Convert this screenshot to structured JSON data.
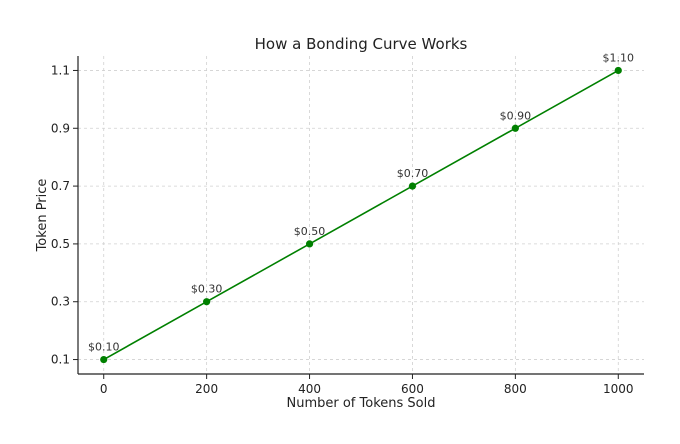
{
  "chart_data": {
    "type": "line",
    "title": "How a Bonding Curve Works",
    "xlabel": "Number of Tokens Sold",
    "ylabel": "Token Price",
    "xlim": [
      -50,
      1050
    ],
    "ylim": [
      0.05,
      1.15
    ],
    "x_ticks": [
      0,
      200,
      400,
      600,
      800,
      1000
    ],
    "y_ticks": [
      0.1,
      0.3,
      0.5,
      0.7,
      0.9,
      1.1
    ],
    "y_tick_labels": [
      "0.1",
      "0.3",
      "0.5",
      "0.7",
      "0.9",
      "1.1"
    ],
    "grid": true,
    "legend": "none",
    "series": [
      {
        "x": [
          0,
          200,
          400,
          600,
          800,
          1000
        ],
        "values": [
          0.1,
          0.3,
          0.5,
          0.7,
          0.9,
          1.1
        ],
        "data_labels": [
          "$0.10",
          "$0.30",
          "$0.50",
          "$0.70",
          "$0.90",
          "$1.10"
        ],
        "color": "#008000",
        "marker": "circle"
      }
    ]
  }
}
